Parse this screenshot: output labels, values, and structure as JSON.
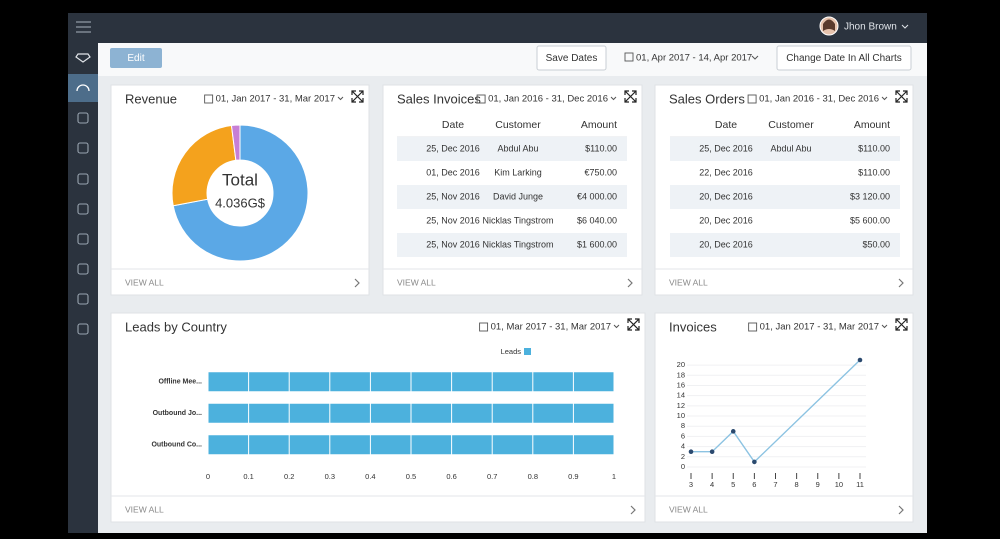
{
  "header": {
    "user": "Jhon Brown"
  },
  "toolbar": {
    "edit": "Edit",
    "save_dates": "Save Dates",
    "date_range": "01, Apr 2017 - 14, Apr 2017",
    "change_date": "Change Date In All Charts"
  },
  "panels": {
    "revenue": {
      "date_range": "01, Jan 2017 - 31, Mar 2017",
      "footer": "VIEW ALL"
    },
    "sales_invoices": {
      "title": "Sales Invoices",
      "date_range": "01, Jan 2016 - 31, Dec 2016",
      "footer": "VIEW ALL",
      "table": {
        "columns": [
          "Date",
          "Customer",
          "Amount"
        ],
        "rows": [
          [
            "25, Dec 2016",
            "Abdul Abu",
            "$110.00"
          ],
          [
            "01, Dec 2016",
            "Kim Larking",
            "€750.00"
          ],
          [
            "25, Nov 2016",
            "David Junge",
            "€4 000.00"
          ],
          [
            "25, Nov 2016",
            "Nicklas Tingstrom",
            "$6 040.00"
          ],
          [
            "25, Nov 2016",
            "Nicklas Tingstrom",
            "$1 600.00"
          ]
        ]
      }
    },
    "sales_orders": {
      "title": "Sales Orders",
      "date_range": "01, Jan 2016 - 31, Dec 2016",
      "footer": "VIEW ALL",
      "table": {
        "columns": [
          "Date",
          "Customer",
          "Amount"
        ],
        "rows": [
          [
            "25, Dec 2016",
            "Abdul Abu",
            "$110.00"
          ],
          [
            "22, Dec 2016",
            null,
            "$110.00"
          ],
          [
            "20, Dec 2016",
            null,
            "$3 120.00"
          ],
          [
            "20, Dec 2016",
            null,
            "$5 600.00"
          ],
          [
            "20, Dec 2016",
            null,
            "$50.00"
          ]
        ]
      }
    },
    "leads": {
      "date_range": "01, Mar 2017 - 31, Mar 2017",
      "footer": "VIEW ALL"
    },
    "invoices": {
      "date_range": "01, Jan 2017 - 31, Mar 2017",
      "footer": "VIEW ALL"
    }
  },
  "chart_data": [
    {
      "type": "pie",
      "title": "Revenue",
      "center_label": "Total",
      "center_value": "4.036G$",
      "categories": [
        null,
        null,
        null
      ],
      "values": [
        72,
        26,
        2
      ],
      "colors": [
        "#5ba8e6",
        "#f4a21d",
        "#c77fd6"
      ]
    },
    {
      "type": "bar",
      "orientation": "horizontal",
      "title": "Leads by Country",
      "categories": [
        "Offline Mee...",
        "Outbound Jo...",
        "Outbound Co..."
      ],
      "series": [
        {
          "name": "Leads",
          "color": "#4cb1dd",
          "values": [
            1,
            1,
            1
          ]
        }
      ],
      "xlim": [
        0,
        1
      ],
      "xticks": [
        0,
        0.1,
        0.2,
        0.3,
        0.4,
        0.5,
        0.6,
        0.7,
        0.8,
        0.9,
        1
      ],
      "grid": true,
      "legend": "top"
    },
    {
      "type": "line",
      "title": "Invoices",
      "x": [
        3,
        4,
        5,
        6,
        11
      ],
      "series": [
        {
          "color": "#8cc3e2",
          "marker_color": "#2b4a6f",
          "values": [
            3,
            3,
            7,
            1,
            21
          ]
        }
      ],
      "xlim": [
        3,
        11
      ],
      "xticks": [
        3,
        4,
        5,
        6,
        7,
        8,
        9,
        10,
        11
      ],
      "ylim": [
        0,
        21
      ],
      "yticks": [
        0,
        2,
        4,
        6,
        8,
        10,
        12,
        14,
        16,
        18,
        20
      ],
      "grid": true
    }
  ]
}
